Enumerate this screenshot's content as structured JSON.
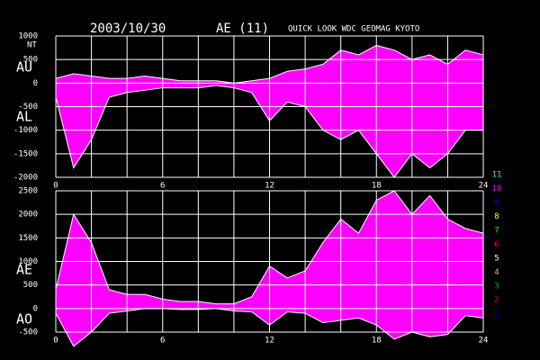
{
  "header": {
    "date": "2003/10/30",
    "index": "AE (11)",
    "source": "QUICK LOOK  WDC GEOMAG KYOTO"
  },
  "station_legend": [
    {
      "label": "11",
      "color": "#00ffff"
    },
    {
      "label": "10",
      "color": "#ff00ff"
    },
    {
      "label": "9",
      "color": "#0000ff"
    },
    {
      "label": "8",
      "color": "#ffff00"
    },
    {
      "label": "7",
      "color": "#00ff00"
    },
    {
      "label": "6",
      "color": "#ff0000"
    },
    {
      "label": "5",
      "color": "#ffffff"
    },
    {
      "label": "4",
      "color": "#c0c0c0"
    },
    {
      "label": "3",
      "color": "#00c000"
    },
    {
      "label": "2",
      "color": "#c000c0"
    },
    {
      "label": "1",
      "color": "#0000c0"
    }
  ],
  "chart_data": [
    {
      "type": "area",
      "unit": "NT",
      "x": [
        0,
        1,
        2,
        3,
        4,
        5,
        6,
        7,
        8,
        9,
        10,
        11,
        12,
        13,
        14,
        15,
        16,
        17,
        18,
        19,
        20,
        21,
        22,
        23,
        24
      ],
      "xlim": [
        0,
        24
      ],
      "xticks": [
        0,
        6,
        12,
        18,
        24
      ],
      "x_grid": [
        0,
        2,
        4,
        6,
        8,
        10,
        12,
        14,
        16,
        18,
        20,
        22,
        24
      ],
      "ylim": [
        -2000,
        1000
      ],
      "yticks": [
        1000,
        500,
        0,
        -500,
        -1000,
        -1500,
        -2000
      ],
      "grid": true,
      "series": [
        {
          "name": "AU",
          "color": "#ff00ff",
          "values": [
            100,
            200,
            150,
            100,
            100,
            150,
            100,
            50,
            50,
            50,
            0,
            50,
            100,
            250,
            300,
            400,
            700,
            600,
            800,
            700,
            500,
            600,
            400,
            700,
            600
          ]
        },
        {
          "name": "AL",
          "color": "#ff00ff",
          "values": [
            -300,
            -1800,
            -1200,
            -300,
            -200,
            -150,
            -100,
            -100,
            -100,
            -50,
            -100,
            -200,
            -800,
            -400,
            -500,
            -1000,
            -1200,
            -1000,
            -1500,
            -2000,
            -1500,
            -1800,
            -1500,
            -1000,
            -1000
          ]
        }
      ]
    },
    {
      "type": "area",
      "x": [
        0,
        1,
        2,
        3,
        4,
        5,
        6,
        7,
        8,
        9,
        10,
        11,
        12,
        13,
        14,
        15,
        16,
        17,
        18,
        19,
        20,
        21,
        22,
        23,
        24
      ],
      "xlim": [
        0,
        24
      ],
      "xticks": [
        0,
        6,
        12,
        18,
        24
      ],
      "x_grid": [
        0,
        2,
        4,
        6,
        8,
        10,
        12,
        14,
        16,
        18,
        20,
        22,
        24
      ],
      "ylim": [
        -500,
        2500
      ],
      "yticks": [
        2500,
        2000,
        1500,
        1000,
        500,
        0,
        -500
      ],
      "grid": true,
      "series": [
        {
          "name": "AE",
          "color": "#ff00ff",
          "values": [
            400,
            2000,
            1400,
            400,
            300,
            300,
            200,
            150,
            150,
            100,
            100,
            250,
            900,
            650,
            800,
            1400,
            1900,
            1600,
            2300,
            2500,
            2000,
            2400,
            1900,
            1700,
            1600
          ]
        },
        {
          "name": "AO",
          "color": "#ff00ff",
          "values": [
            -100,
            -800,
            -500,
            -100,
            -50,
            0,
            0,
            -20,
            -20,
            0,
            -50,
            -70,
            -350,
            -70,
            -100,
            -300,
            -250,
            -200,
            -350,
            -650,
            -500,
            -600,
            -550,
            -150,
            -200
          ]
        }
      ]
    }
  ]
}
